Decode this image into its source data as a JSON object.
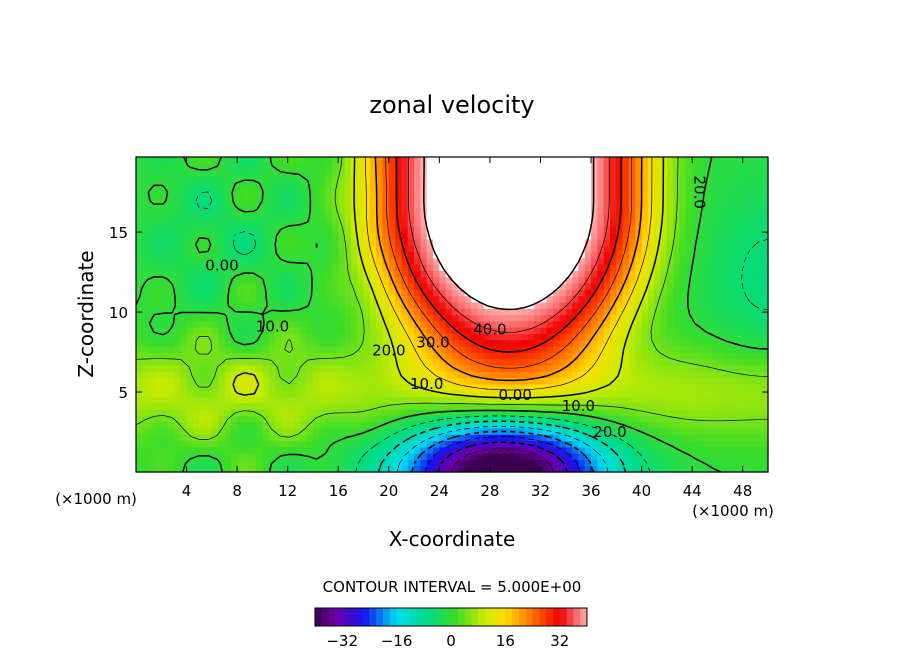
{
  "chart_data": {
    "type": "heatmap",
    "subtype": "filled contour with line contours",
    "title": "zonal velocity",
    "xlabel": "X-coordinate",
    "ylabel": "Z-coordinate",
    "x_unit_left": "(×1000 m)",
    "x_unit_right": "(×1000 m)",
    "xlim": [
      0,
      50
    ],
    "ylim": [
      0,
      19.7
    ],
    "x_ticks": [
      4,
      8,
      12,
      16,
      20,
      24,
      28,
      32,
      36,
      40,
      44,
      48
    ],
    "y_ticks": [
      5,
      10,
      15
    ],
    "contour_interval_text": "CONTOUR INTERVAL = 5.000E+00",
    "contour_interval": 5,
    "field_range": [
      -40,
      40
    ],
    "above_max_color": "#ffffff",
    "contour_labels": [
      {
        "text": "0.00",
        "x": 6.8,
        "z": 12.6
      },
      {
        "text": "10.0",
        "x": 10.8,
        "z": 8.8
      },
      {
        "text": "20.0",
        "x": 20.0,
        "z": 7.3
      },
      {
        "text": "30.0",
        "x": 23.5,
        "z": 7.8
      },
      {
        "text": "40.0",
        "x": 28.0,
        "z": 8.6
      },
      {
        "text": "10.0",
        "x": 23.0,
        "z": 5.2
      },
      {
        "text": "0.00",
        "x": 30.0,
        "z": 4.5
      },
      {
        "text": "10.0",
        "x": 35.0,
        "z": 3.8
      },
      {
        "text": "20.0",
        "x": 37.5,
        "z": 2.2
      },
      {
        "text": "20.0",
        "x": 44.2,
        "z": 17.5
      }
    ],
    "colorbar": {
      "tick_labels": [
        "−32",
        "−16",
        "0",
        "16",
        "32"
      ],
      "tick_values": [
        -32,
        -16,
        0,
        16,
        32
      ],
      "range": [
        -40,
        40
      ]
    },
    "grid": false,
    "legend": "colorbar at bottom"
  }
}
